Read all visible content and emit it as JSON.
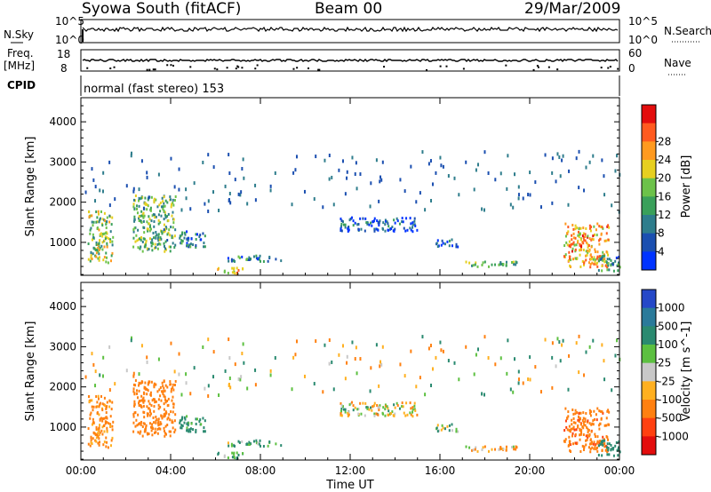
{
  "header": {
    "title": "Syowa South (fitACF)",
    "beam": "Beam 00",
    "date": "29/Mar/2009"
  },
  "meta": {
    "nsky_label": "N.Sky",
    "nsearch_label": "N.Search",
    "freq_label_1": "Freq.",
    "freq_label_2": "[MHz]",
    "nave_label": "Nave",
    "cpid_label": "CPID",
    "cpid_text": "normal (fast stereo) 153",
    "noise_ticks_left": [
      "10^5",
      "10^0"
    ],
    "noise_ticks_right": [
      "10^5",
      "10^0"
    ],
    "freq_ticks_left": [
      "18",
      "8"
    ],
    "nave_ticks_right": [
      "60",
      "0"
    ]
  },
  "chart_data": [
    {
      "type": "heatmap",
      "title": "",
      "ylabel": "Slant Range [km]",
      "xlabel": "",
      "ylim": [
        180,
        4600
      ],
      "yticks": [
        1000,
        2000,
        3000,
        4000
      ],
      "xlim_hours": [
        0,
        24
      ],
      "xtick_labels": [
        "00:00",
        "04:00",
        "08:00",
        "12:00",
        "16:00",
        "20:00",
        "00:00"
      ],
      "colorbar": {
        "label": "Power [dB]",
        "ticks": [
          "4",
          "8",
          "12",
          "16",
          "20",
          "24",
          "28"
        ],
        "colors": [
          "#0033ff",
          "#1b4fb0",
          "#2e7d8c",
          "#3aa05a",
          "#6cc24a",
          "#e6cf20",
          "#ff9a1f",
          "#ff5a1f",
          "#e30d0d"
        ]
      },
      "clusters": [
        {
          "t": [
            0.3,
            1.4
          ],
          "r": [
            500,
            1800
          ],
          "value": 16
        },
        {
          "t": [
            2.3,
            4.2
          ],
          "r": [
            800,
            2200
          ],
          "value": 14
        },
        {
          "t": [
            4.2,
            5.5
          ],
          "r": [
            900,
            1300
          ],
          "value": 8
        },
        {
          "t": [
            6.0,
            7.2
          ],
          "r": [
            250,
            420
          ],
          "value": 22
        },
        {
          "t": [
            6.5,
            9.0
          ],
          "r": [
            550,
            700
          ],
          "value": 8
        },
        {
          "t": [
            11.5,
            15.0
          ],
          "r": [
            1300,
            1650
          ],
          "value": 6
        },
        {
          "t": [
            15.8,
            16.8
          ],
          "r": [
            900,
            1100
          ],
          "value": 5
        },
        {
          "t": [
            17.0,
            19.5
          ],
          "r": [
            420,
            560
          ],
          "value": 14
        },
        {
          "t": [
            21.5,
            23.5
          ],
          "r": [
            400,
            1500
          ],
          "value": 22
        },
        {
          "t": [
            23.0,
            24.0
          ],
          "r": [
            300,
            700
          ],
          "value": 10
        }
      ]
    },
    {
      "type": "heatmap",
      "title": "",
      "ylabel": "Slant Range [km]",
      "xlabel": "Time UT",
      "ylim": [
        180,
        4600
      ],
      "yticks": [
        1000,
        2000,
        3000,
        4000
      ],
      "xlim_hours": [
        0,
        24
      ],
      "xtick_labels": [
        "00:00",
        "04:00",
        "08:00",
        "12:00",
        "16:00",
        "20:00",
        "00:00"
      ],
      "colorbar": {
        "label": "Velocity [m s^-1]",
        "ticks": [
          "1000",
          "500",
          "100",
          "25",
          "-25",
          "-100",
          "-500",
          "-1000"
        ],
        "colors": [
          "#2548c8",
          "#2a7a9a",
          "#2a8a70",
          "#5cc040",
          "#c8c8c8",
          "#ffb020",
          "#ff8010",
          "#ff4010",
          "#e30d0d"
        ]
      },
      "clusters": [
        {
          "t": [
            0.3,
            1.4
          ],
          "r": [
            500,
            1800
          ],
          "value": -200
        },
        {
          "t": [
            2.3,
            4.2
          ],
          "r": [
            800,
            2200
          ],
          "value": -300
        },
        {
          "t": [
            4.2,
            5.5
          ],
          "r": [
            900,
            1300
          ],
          "value": 200
        },
        {
          "t": [
            6.0,
            7.2
          ],
          "r": [
            250,
            420
          ],
          "value": 150
        },
        {
          "t": [
            6.5,
            9.0
          ],
          "r": [
            550,
            700
          ],
          "value": 120
        },
        {
          "t": [
            11.5,
            15.0
          ],
          "r": [
            1300,
            1650
          ],
          "value": 0
        },
        {
          "t": [
            15.8,
            16.8
          ],
          "r": [
            900,
            1100
          ],
          "value": 60
        },
        {
          "t": [
            17.0,
            19.5
          ],
          "r": [
            420,
            560
          ],
          "value": -80
        },
        {
          "t": [
            21.5,
            23.5
          ],
          "r": [
            400,
            1500
          ],
          "value": -400
        },
        {
          "t": [
            23.0,
            24.0
          ],
          "r": [
            300,
            700
          ],
          "value": 300
        }
      ]
    }
  ]
}
